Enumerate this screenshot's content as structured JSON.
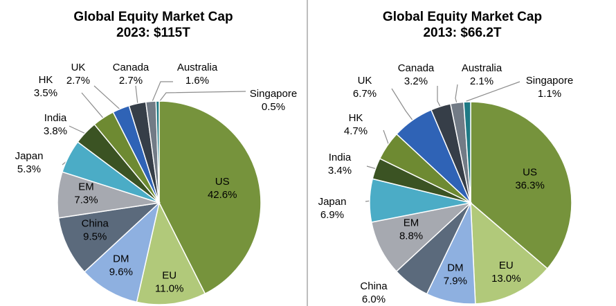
{
  "chart_data": [
    {
      "type": "pie",
      "title": "Global Equity Market Cap",
      "subtitle": "2023: $115T",
      "unit": "%",
      "slices": [
        {
          "name": "US",
          "value": 42.6,
          "color": "#76933c"
        },
        {
          "name": "EU",
          "value": 11.0,
          "color": "#b1c97a"
        },
        {
          "name": "DM",
          "value": 9.6,
          "color": "#8eb0e0"
        },
        {
          "name": "China",
          "value": 9.5,
          "color": "#5b6a7c"
        },
        {
          "name": "EM",
          "value": 7.3,
          "color": "#a6a9b0"
        },
        {
          "name": "Japan",
          "value": 5.3,
          "color": "#4bacc6"
        },
        {
          "name": "India",
          "value": 3.8,
          "color": "#3b5323"
        },
        {
          "name": "HK",
          "value": 3.5,
          "color": "#6e8a32"
        },
        {
          "name": "UK",
          "value": 2.7,
          "color": "#2f63b6"
        },
        {
          "name": "Canada",
          "value": 2.7,
          "color": "#363e48"
        },
        {
          "name": "Australia",
          "value": 1.6,
          "color": "#727b86"
        },
        {
          "name": "Singapore",
          "value": 0.5,
          "color": "#1f7a85"
        }
      ]
    },
    {
      "type": "pie",
      "title": "Global Equity Market Cap",
      "subtitle": "2013: $66.2T",
      "unit": "%",
      "slices": [
        {
          "name": "US",
          "value": 36.3,
          "color": "#76933c"
        },
        {
          "name": "EU",
          "value": 13.0,
          "color": "#b1c97a"
        },
        {
          "name": "DM",
          "value": 7.9,
          "color": "#8eb0e0"
        },
        {
          "name": "China",
          "value": 6.0,
          "color": "#5b6a7c"
        },
        {
          "name": "EM",
          "value": 8.8,
          "color": "#a6a9b0"
        },
        {
          "name": "Japan",
          "value": 6.9,
          "color": "#4bacc6"
        },
        {
          "name": "India",
          "value": 3.4,
          "color": "#3b5323"
        },
        {
          "name": "HK",
          "value": 4.7,
          "color": "#6e8a32"
        },
        {
          "name": "UK",
          "value": 6.7,
          "color": "#2f63b6"
        },
        {
          "name": "Canada",
          "value": 3.2,
          "color": "#363e48"
        },
        {
          "name": "Australia",
          "value": 2.1,
          "color": "#727b86"
        },
        {
          "name": "Singapore",
          "value": 1.1,
          "color": "#1f7a85"
        }
      ]
    }
  ]
}
